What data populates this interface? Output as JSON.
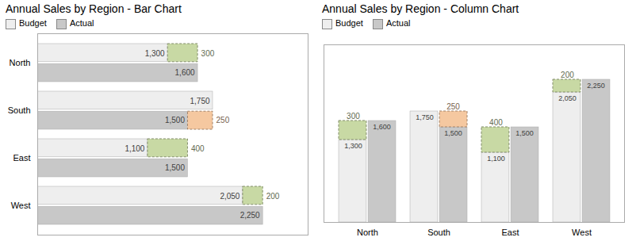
{
  "chart_data": [
    {
      "type": "bar",
      "orientation": "horizontal",
      "title": "Annual Sales by Region - Bar Chart",
      "categories": [
        "North",
        "South",
        "East",
        "West"
      ],
      "series": [
        {
          "name": "Budget",
          "color": "#eeeeee",
          "values": [
            1300,
            1750,
            1100,
            2050
          ],
          "value_labels": [
            "1,300",
            "1,750",
            "1,100",
            "2,050"
          ],
          "overlay": {
            "values": [
              300,
              null,
              400,
              200
            ],
            "color": "#c8d9a4"
          }
        },
        {
          "name": "Actual",
          "color": "#c8c8c8",
          "values": [
            1600,
            1500,
            1500,
            2250
          ],
          "value_labels": [
            "1,600",
            "1,500",
            "1,500",
            "2,250"
          ],
          "overlay": {
            "values": [
              null,
              250,
              null,
              null
            ],
            "color": "#f5c8a0"
          }
        }
      ],
      "xlim": [
        0,
        2700
      ],
      "xticks": [],
      "tick_labels": "y",
      "data_labels": true,
      "legend": "top"
    },
    {
      "type": "bar",
      "title": "Annual Sales by Region - Column Chart",
      "categories": [
        "North",
        "South",
        "East",
        "West"
      ],
      "series": [
        {
          "name": "Budget",
          "color": "#eeeeee",
          "values": [
            1300,
            1750,
            1100,
            2050
          ],
          "value_labels": [
            "1,300",
            "1,750",
            "1,100",
            "2,050"
          ],
          "overlay": {
            "values": [
              300,
              null,
              400,
              200
            ],
            "color": "#c8d9a4"
          }
        },
        {
          "name": "Actual",
          "color": "#c8c8c8",
          "values": [
            1600,
            1500,
            1500,
            2250
          ],
          "value_labels": [
            "1,600",
            "1,500",
            "1,500",
            "2,250"
          ],
          "overlay": {
            "values": [
              null,
              250,
              null,
              null
            ],
            "color": "#f5c8a0"
          }
        }
      ],
      "ylim": [
        0,
        2800
      ],
      "yticks": [],
      "tick_labels": "x",
      "data_labels": true,
      "legend": "top"
    }
  ]
}
